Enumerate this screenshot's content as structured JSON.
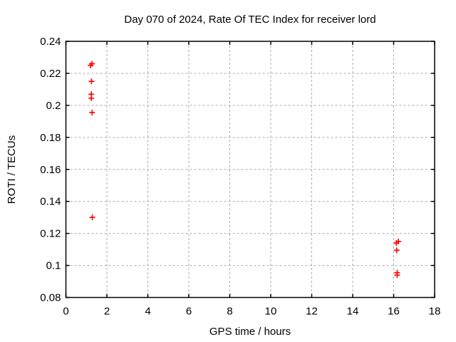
{
  "chart_data": {
    "type": "scatter",
    "title": "Day 070 of 2024, Rate Of TEC Index for receiver lord",
    "xlabel": "GPS time / hours",
    "ylabel": "ROTI / TECUs",
    "xlim": [
      0,
      18
    ],
    "ylim": [
      0.08,
      0.24
    ],
    "grid": true,
    "legend": "none",
    "marker": "plus",
    "marker_color": "#ff0000",
    "grid_color": "#aaaaaa",
    "xticks": {
      "values": [
        0,
        2,
        4,
        6,
        8,
        10,
        12,
        14,
        16,
        18
      ],
      "labels": [
        "0",
        "2",
        "4",
        "6",
        "8",
        "10",
        "12",
        "14",
        "16",
        "18"
      ]
    },
    "yticks": {
      "values": [
        0.08,
        0.1,
        0.12,
        0.14,
        0.16,
        0.18,
        0.2,
        0.22,
        0.24
      ],
      "labels": [
        "0.08",
        "0.1",
        "0.12",
        "0.14",
        "0.16",
        "0.18",
        "0.2",
        "0.22",
        "0.24"
      ]
    },
    "series": [
      {
        "name": "ROTI",
        "points": [
          [
            1.2,
            0.225
          ],
          [
            1.28,
            0.226
          ],
          [
            1.25,
            0.215
          ],
          [
            1.24,
            0.207
          ],
          [
            1.24,
            0.2045
          ],
          [
            1.28,
            0.1955
          ],
          [
            1.29,
            0.13
          ],
          [
            16.13,
            0.114
          ],
          [
            16.23,
            0.115
          ],
          [
            16.15,
            0.1095
          ],
          [
            16.17,
            0.0955
          ],
          [
            16.17,
            0.094
          ]
        ]
      }
    ]
  }
}
